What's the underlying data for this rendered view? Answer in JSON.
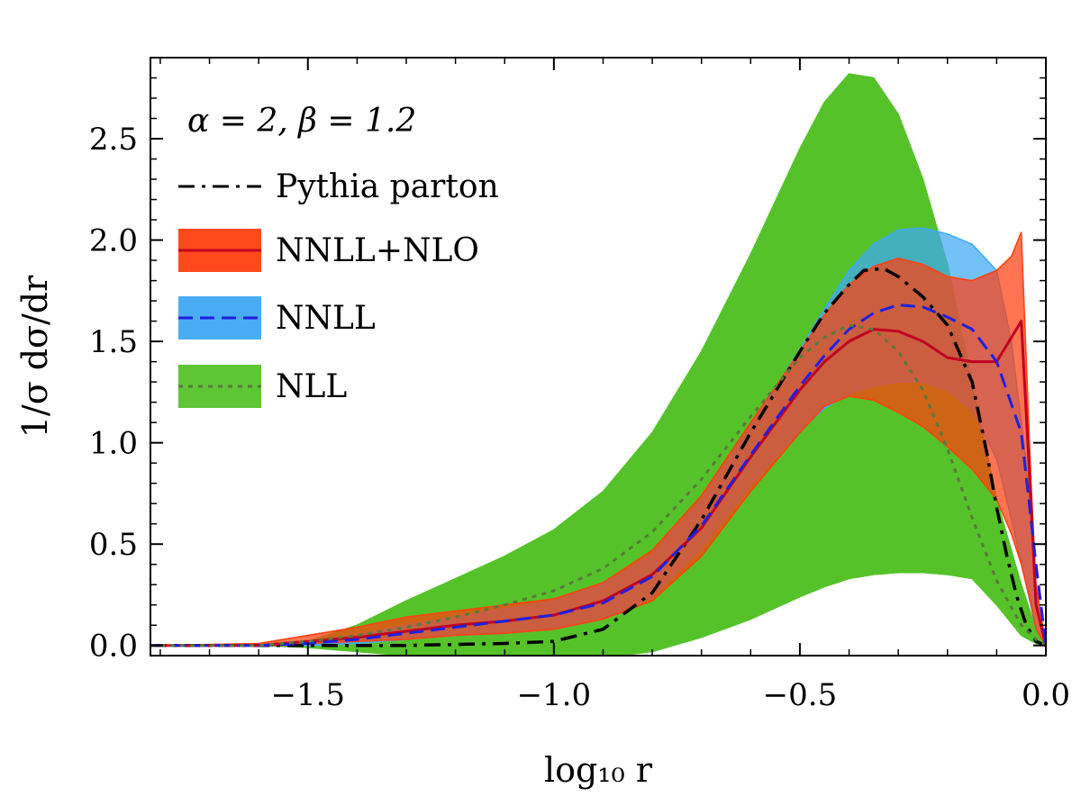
{
  "chart_data": {
    "type": "line",
    "title": "",
    "xlabel": "log₁₀ r",
    "ylabel": "1/σ dσ/dr",
    "xlim": [
      -1.82,
      0.0
    ],
    "ylim": [
      -0.05,
      2.9
    ],
    "xticks": [
      -1.5,
      -1.0,
      -0.5,
      0.0
    ],
    "xtick_labels": [
      "−1.5",
      "−1.0",
      "−0.5",
      "0.0"
    ],
    "yticks": [
      0.0,
      0.5,
      1.0,
      1.5,
      2.0,
      2.5
    ],
    "ytick_labels": [
      "0.0",
      "0.5",
      "1.0",
      "1.5",
      "2.0",
      "2.5"
    ],
    "legend_title": "α = 2, β = 1.2",
    "legend_position": "top-left",
    "bands": [
      {
        "name": "NLL",
        "fill": "#55c22a",
        "x": [
          -1.82,
          -1.6,
          -1.5,
          -1.4,
          -1.3,
          -1.2,
          -1.1,
          -1.0,
          -0.9,
          -0.8,
          -0.7,
          -0.6,
          -0.5,
          -0.45,
          -0.4,
          -0.35,
          -0.3,
          -0.25,
          -0.2,
          -0.15,
          -0.1,
          -0.05,
          -0.02,
          0.0
        ],
        "upper": [
          0.0,
          0.0,
          0.02,
          0.1,
          0.22,
          0.33,
          0.44,
          0.57,
          0.76,
          1.05,
          1.45,
          1.93,
          2.45,
          2.68,
          2.82,
          2.8,
          2.62,
          2.3,
          1.88,
          1.3,
          0.72,
          0.3,
          0.08,
          0.0
        ],
        "lower": [
          0.0,
          0.0,
          -0.01,
          -0.03,
          -0.05,
          -0.06,
          -0.07,
          -0.07,
          -0.06,
          -0.03,
          0.04,
          0.13,
          0.24,
          0.29,
          0.33,
          0.35,
          0.36,
          0.36,
          0.35,
          0.33,
          0.2,
          0.05,
          0.01,
          0.0
        ]
      },
      {
        "name": "NNLL",
        "fill": "#3fa9f5",
        "x": [
          -1.82,
          -1.6,
          -1.5,
          -1.4,
          -1.3,
          -1.2,
          -1.1,
          -1.0,
          -0.9,
          -0.8,
          -0.7,
          -0.6,
          -0.5,
          -0.45,
          -0.4,
          -0.35,
          -0.3,
          -0.25,
          -0.2,
          -0.15,
          -0.1,
          -0.07,
          -0.04,
          -0.02,
          0.0
        ],
        "upper": [
          0.0,
          0.0,
          0.02,
          0.05,
          0.1,
          0.14,
          0.18,
          0.22,
          0.3,
          0.45,
          0.72,
          1.08,
          1.46,
          1.66,
          1.85,
          1.98,
          2.05,
          2.06,
          2.03,
          1.98,
          1.85,
          1.5,
          0.9,
          0.3,
          0.0
        ],
        "lower": [
          0.0,
          0.0,
          0.0,
          0.01,
          0.03,
          0.05,
          0.06,
          0.08,
          0.13,
          0.24,
          0.48,
          0.79,
          1.06,
          1.17,
          1.24,
          1.28,
          1.3,
          1.3,
          1.26,
          1.16,
          0.92,
          0.62,
          0.3,
          0.08,
          0.0
        ]
      },
      {
        "name": "NNLL+NLO",
        "fill": "#ff3f0f",
        "x": [
          -1.82,
          -1.6,
          -1.55,
          -1.5,
          -1.4,
          -1.3,
          -1.2,
          -1.1,
          -1.0,
          -0.9,
          -0.8,
          -0.7,
          -0.6,
          -0.5,
          -0.45,
          -0.4,
          -0.35,
          -0.3,
          -0.25,
          -0.2,
          -0.15,
          -0.1,
          -0.07,
          -0.05,
          -0.03,
          -0.02,
          0.0
        ],
        "upper": [
          0.0,
          0.01,
          0.03,
          0.05,
          0.09,
          0.14,
          0.17,
          0.2,
          0.23,
          0.31,
          0.47,
          0.74,
          1.1,
          1.45,
          1.63,
          1.78,
          1.87,
          1.91,
          1.88,
          1.82,
          1.8,
          1.85,
          1.92,
          2.04,
          0.8,
          0.3,
          0.0
        ],
        "lower": [
          0.0,
          0.0,
          0.0,
          0.01,
          0.02,
          0.03,
          0.05,
          0.06,
          0.08,
          0.13,
          0.22,
          0.44,
          0.76,
          1.05,
          1.18,
          1.23,
          1.21,
          1.15,
          1.08,
          0.98,
          0.87,
          0.72,
          0.55,
          0.4,
          0.2,
          0.08,
          0.0
        ]
      }
    ],
    "series": [
      {
        "name": "Pythia parton",
        "color": "#000000",
        "style": "dashdot",
        "x": [
          -1.82,
          -1.5,
          -1.3,
          -1.1,
          -1.0,
          -0.9,
          -0.8,
          -0.7,
          -0.6,
          -0.5,
          -0.45,
          -0.4,
          -0.37,
          -0.33,
          -0.3,
          -0.25,
          -0.2,
          -0.15,
          -0.12,
          -0.1,
          -0.08,
          -0.06,
          -0.04,
          -0.02,
          0.0
        ],
        "values": [
          0.0,
          0.0,
          0.0,
          0.01,
          0.02,
          0.08,
          0.26,
          0.62,
          1.05,
          1.45,
          1.64,
          1.78,
          1.85,
          1.86,
          1.82,
          1.72,
          1.58,
          1.3,
          0.95,
          0.68,
          0.45,
          0.25,
          0.1,
          0.02,
          0.0
        ]
      },
      {
        "name": "NNLL+NLO",
        "color": "#c00022",
        "style": "solid",
        "x": [
          -1.82,
          -1.6,
          -1.5,
          -1.4,
          -1.3,
          -1.2,
          -1.1,
          -1.0,
          -0.9,
          -0.8,
          -0.7,
          -0.6,
          -0.5,
          -0.45,
          -0.4,
          -0.35,
          -0.3,
          -0.25,
          -0.2,
          -0.15,
          -0.1,
          -0.05,
          -0.03,
          -0.02,
          0.0
        ],
        "values": [
          0.0,
          0.0,
          0.02,
          0.04,
          0.07,
          0.1,
          0.12,
          0.15,
          0.22,
          0.35,
          0.58,
          0.93,
          1.26,
          1.4,
          1.5,
          1.56,
          1.55,
          1.5,
          1.42,
          1.4,
          1.4,
          1.6,
          0.7,
          0.2,
          0.0
        ]
      },
      {
        "name": "NNLL",
        "color": "#2020e0",
        "style": "dashed",
        "x": [
          -1.82,
          -1.6,
          -1.5,
          -1.4,
          -1.3,
          -1.2,
          -1.1,
          -1.0,
          -0.9,
          -0.8,
          -0.7,
          -0.6,
          -0.5,
          -0.45,
          -0.4,
          -0.35,
          -0.3,
          -0.25,
          -0.2,
          -0.15,
          -0.1,
          -0.05,
          -0.02,
          0.0
        ],
        "values": [
          0.0,
          0.0,
          0.01,
          0.03,
          0.06,
          0.09,
          0.12,
          0.15,
          0.21,
          0.34,
          0.59,
          0.94,
          1.28,
          1.43,
          1.56,
          1.64,
          1.68,
          1.67,
          1.62,
          1.56,
          1.4,
          1.05,
          0.4,
          0.0
        ]
      },
      {
        "name": "NLL",
        "color": "#5a7a3a",
        "style": "dotted",
        "x": [
          -1.82,
          -1.6,
          -1.5,
          -1.4,
          -1.3,
          -1.2,
          -1.1,
          -1.0,
          -0.9,
          -0.8,
          -0.7,
          -0.6,
          -0.5,
          -0.45,
          -0.4,
          -0.35,
          -0.3,
          -0.25,
          -0.2,
          -0.15,
          -0.1,
          -0.05,
          -0.02,
          0.0
        ],
        "values": [
          0.0,
          0.0,
          0.02,
          0.05,
          0.09,
          0.14,
          0.2,
          0.27,
          0.38,
          0.56,
          0.82,
          1.13,
          1.42,
          1.52,
          1.58,
          1.56,
          1.45,
          1.26,
          0.97,
          0.63,
          0.32,
          0.1,
          0.03,
          0.0
        ]
      }
    ],
    "legend": [
      {
        "label": "Pythia parton",
        "line": "#000000",
        "dash": "dashdot",
        "fill": ""
      },
      {
        "label": "NNLL+NLO",
        "line": "#c00022",
        "dash": "solid",
        "fill": "#ff3f0f"
      },
      {
        "label": "NNLL",
        "line": "#2020e0",
        "dash": "dashed",
        "fill": "#3fa9f5"
      },
      {
        "label": "NLL",
        "line": "#5a7a3a",
        "dash": "dotted",
        "fill": "#55c22a"
      }
    ]
  }
}
